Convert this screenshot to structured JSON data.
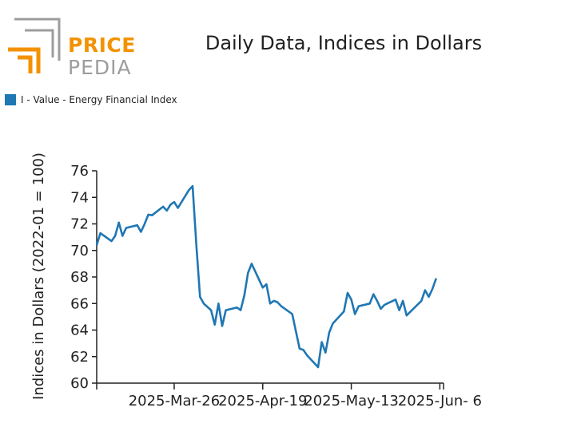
{
  "logo": {
    "word1": "PRICE",
    "word2": "PEDIA",
    "accent": "#f39200",
    "gray": "#9d9d9c"
  },
  "chart_data": {
    "type": "line",
    "title": "Daily Data, Indices in Dollars",
    "ylabel": "Indices in Dollars (2022-01 = 100)",
    "xlabel": "",
    "ylim": [
      60,
      76
    ],
    "y_ticks": [
      60,
      62,
      64,
      66,
      68,
      70,
      72,
      74,
      76
    ],
    "x_ticks": [
      "2025-Mar-26",
      "2025-Apr-19",
      "2025-May-13",
      "2025-Jun- 6"
    ],
    "grid": false,
    "legend_position": "top-left",
    "series": [
      {
        "name": "I - Value - Energy Financial Index",
        "color": "#1f77b4",
        "x": [
          "2025-Mar-05",
          "2025-Mar-06",
          "2025-Mar-09",
          "2025-Mar-10",
          "2025-Mar-11",
          "2025-Mar-12",
          "2025-Mar-13",
          "2025-Mar-16",
          "2025-Mar-17",
          "2025-Mar-18",
          "2025-Mar-19",
          "2025-Mar-20",
          "2025-Mar-23",
          "2025-Mar-24",
          "2025-Mar-25",
          "2025-Mar-26",
          "2025-Mar-27",
          "2025-Mar-30",
          "2025-Mar-31",
          "2025-Apr-01",
          "2025-Apr-02",
          "2025-Apr-03",
          "2025-Apr-05",
          "2025-Apr-06",
          "2025-Apr-07",
          "2025-Apr-08",
          "2025-Apr-09",
          "2025-Apr-12",
          "2025-Apr-13",
          "2025-Apr-14",
          "2025-Apr-15",
          "2025-Apr-16",
          "2025-Apr-19",
          "2025-Apr-20",
          "2025-Apr-21",
          "2025-Apr-22",
          "2025-Apr-23",
          "2025-Apr-24",
          "2025-Apr-27",
          "2025-Apr-28",
          "2025-Apr-29",
          "2025-Apr-30",
          "2025-May-01",
          "2025-May-04",
          "2025-May-05",
          "2025-May-06",
          "2025-May-07",
          "2025-May-08",
          "2025-May-11",
          "2025-May-12",
          "2025-May-13",
          "2025-May-14",
          "2025-May-15",
          "2025-May-18",
          "2025-May-19",
          "2025-May-20",
          "2025-May-21",
          "2025-May-22",
          "2025-May-25",
          "2025-May-26",
          "2025-May-27",
          "2025-May-28",
          "2025-Jun-01",
          "2025-Jun-02",
          "2025-Jun-03",
          "2025-Jun-04",
          "2025-Jun-05"
        ],
        "values": [
          70.4,
          71.3,
          70.7,
          71.1,
          72.1,
          71.1,
          71.7,
          71.9,
          71.4,
          72.0,
          72.7,
          72.65,
          73.3,
          73.0,
          73.45,
          73.65,
          73.2,
          74.55,
          74.85,
          70.4,
          66.5,
          66.0,
          65.5,
          64.4,
          66.0,
          64.3,
          65.5,
          65.7,
          65.5,
          66.6,
          68.3,
          69.0,
          67.2,
          67.45,
          66.0,
          66.2,
          66.1,
          65.8,
          65.2,
          63.9,
          62.6,
          62.5,
          62.1,
          61.2,
          63.1,
          62.3,
          63.8,
          64.5,
          65.4,
          66.8,
          66.3,
          65.2,
          65.8,
          66.0,
          66.7,
          66.2,
          65.6,
          65.9,
          66.3,
          65.5,
          66.2,
          65.1,
          66.2,
          67.0,
          66.5,
          67.1,
          67.9
        ]
      }
    ]
  }
}
